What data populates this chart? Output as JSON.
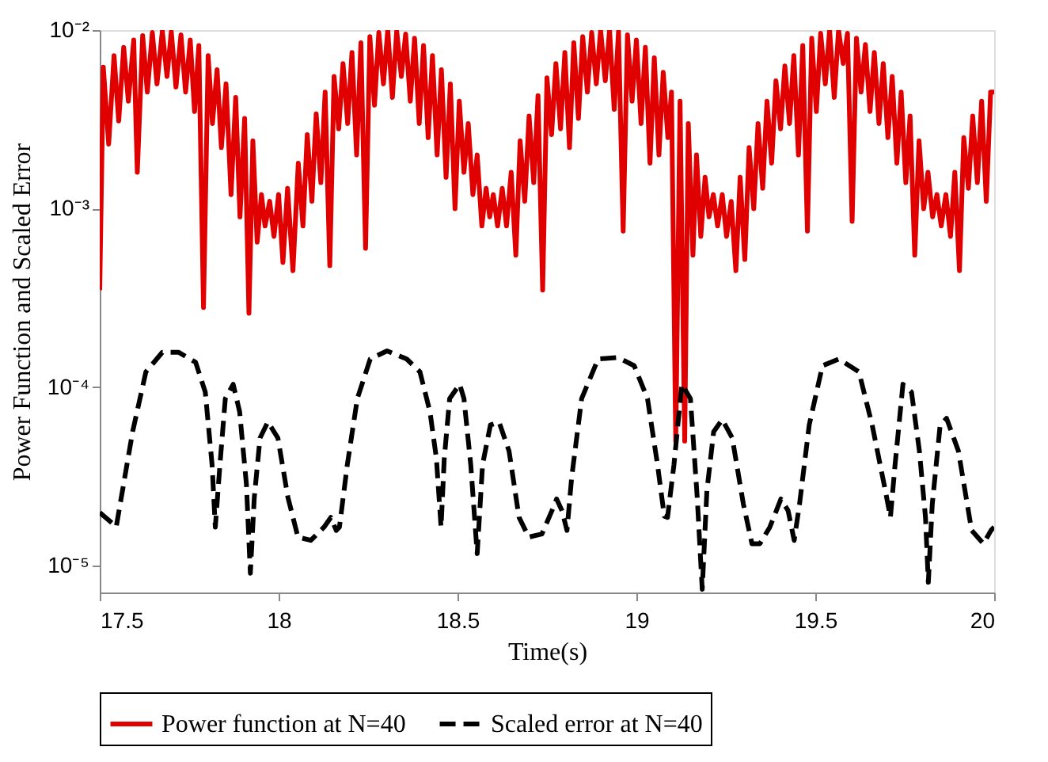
{
  "chart_data": {
    "type": "line",
    "xlabel": "Time(s)",
    "ylabel": "Power Function and Scaled Error",
    "log": "y",
    "grid": false,
    "legend": "bottom",
    "marker": "none",
    "xlim": [
      17.5,
      20
    ],
    "xticks": [
      17.5,
      18,
      18.5,
      19,
      19.5,
      20
    ],
    "ylim": [
      7.1e-06,
      0.01
    ],
    "yticks": [
      {
        "value": 1e-05,
        "label": "10⁻⁵"
      },
      {
        "value": 0.0001,
        "label": "10⁻⁴"
      },
      {
        "value": 0.001,
        "label": "10⁻³"
      },
      {
        "value": 0.01,
        "label": "10⁻²"
      }
    ],
    "series": [
      {
        "name": "Power function at N=40",
        "color": "#e00000",
        "line_style": "solid",
        "x": [
          17.5,
          17.51,
          17.525,
          17.54,
          17.553,
          17.567,
          17.58,
          17.595,
          17.605,
          17.62,
          17.633,
          17.647,
          17.66,
          17.675,
          17.688,
          17.7,
          17.713,
          17.727,
          17.74,
          17.753,
          17.765,
          17.777,
          17.79,
          17.803,
          17.815,
          17.828,
          17.84,
          17.853,
          17.867,
          17.88,
          17.892,
          17.905,
          17.917,
          17.928,
          17.94,
          17.952,
          17.962,
          17.975,
          17.987,
          18.0,
          18.012,
          18.025,
          18.04,
          18.055,
          18.068,
          18.08,
          18.093,
          18.105,
          18.118,
          18.13,
          18.143,
          18.155,
          18.168,
          18.18,
          18.193,
          18.205,
          18.218,
          18.23,
          18.243,
          18.255,
          18.268,
          18.28,
          18.293,
          18.305,
          18.318,
          18.33,
          18.343,
          18.355,
          18.368,
          18.38,
          18.393,
          18.405,
          18.418,
          18.43,
          18.443,
          18.455,
          18.468,
          18.48,
          18.493,
          18.505,
          18.518,
          18.53,
          18.543,
          18.555,
          18.568,
          18.58,
          18.59,
          18.6,
          18.612,
          18.625,
          18.637,
          18.65,
          18.663,
          18.675,
          18.688,
          18.7,
          18.713,
          18.725,
          18.738,
          18.75,
          18.763,
          18.775,
          18.788,
          18.8,
          18.813,
          18.825,
          18.838,
          18.85,
          18.863,
          18.875,
          18.888,
          18.9,
          18.913,
          18.925,
          18.938,
          18.95,
          18.963,
          18.975,
          18.988,
          19.0,
          19.013,
          19.025,
          19.038,
          19.05,
          19.063,
          19.075,
          19.088,
          19.098,
          19.11,
          19.122,
          19.135,
          19.145,
          19.158,
          19.168,
          19.18,
          19.192,
          19.203,
          19.215,
          19.227,
          19.24,
          19.252,
          19.265,
          19.278,
          19.29,
          19.303,
          19.315,
          19.328,
          19.34,
          19.353,
          19.365,
          19.378,
          19.39,
          19.403,
          19.415,
          19.428,
          19.44,
          19.453,
          19.465,
          19.478,
          19.49,
          19.503,
          19.515,
          19.528,
          19.54,
          19.553,
          19.565,
          19.578,
          19.59,
          19.603,
          19.615,
          19.628,
          19.64,
          19.653,
          19.665,
          19.678,
          19.69,
          19.703,
          19.715,
          19.728,
          19.74,
          19.753,
          19.765,
          19.778,
          19.79,
          19.803,
          19.815,
          19.828,
          19.84,
          19.852,
          19.865,
          19.878,
          19.89,
          19.903,
          19.915,
          19.928,
          19.94,
          19.953,
          19.965,
          19.978,
          19.99,
          20.0
        ],
        "values": [
          0.00035,
          0.0062,
          0.0023,
          0.0072,
          0.0031,
          0.008,
          0.004,
          0.0088,
          0.0016,
          0.0093,
          0.0045,
          0.0097,
          0.005,
          0.0099,
          0.0055,
          0.0098,
          0.0048,
          0.0094,
          0.0045,
          0.0088,
          0.0035,
          0.0082,
          0.00028,
          0.0072,
          0.003,
          0.006,
          0.0022,
          0.005,
          0.0012,
          0.0042,
          0.0009,
          0.0032,
          0.00026,
          0.0024,
          0.00065,
          0.0012,
          0.0008,
          0.0011,
          0.0007,
          0.0012,
          0.0005,
          0.0013,
          0.00045,
          0.0018,
          0.0008,
          0.0026,
          0.0011,
          0.0034,
          0.0014,
          0.0045,
          0.00048,
          0.0055,
          0.0028,
          0.0065,
          0.003,
          0.0075,
          0.002,
          0.0085,
          0.0006,
          0.0092,
          0.0038,
          0.0097,
          0.005,
          0.01,
          0.0042,
          0.0099,
          0.0055,
          0.0095,
          0.004,
          0.009,
          0.003,
          0.0082,
          0.0025,
          0.0072,
          0.002,
          0.006,
          0.0015,
          0.005,
          0.001,
          0.004,
          0.0016,
          0.003,
          0.0012,
          0.002,
          0.0008,
          0.0013,
          0.0009,
          0.0012,
          0.0008,
          0.0013,
          0.0008,
          0.0016,
          0.00055,
          0.0024,
          0.0011,
          0.0033,
          0.0014,
          0.0043,
          0.00035,
          0.0054,
          0.0026,
          0.0065,
          0.0028,
          0.0075,
          0.0022,
          0.0085,
          0.0032,
          0.0092,
          0.0045,
          0.0097,
          0.005,
          0.01,
          0.0052,
          0.01,
          0.0036,
          0.0098,
          0.00075,
          0.0094,
          0.004,
          0.0088,
          0.003,
          0.008,
          0.0018,
          0.007,
          0.002,
          0.0058,
          0.0025,
          0.0045,
          5e-05,
          0.004,
          5e-05,
          0.003,
          0.00055,
          0.002,
          0.0007,
          0.0015,
          0.0009,
          0.0012,
          0.0008,
          0.0012,
          0.0007,
          0.0011,
          0.00045,
          0.0015,
          0.00052,
          0.0022,
          0.001,
          0.003,
          0.0013,
          0.004,
          0.0018,
          0.0052,
          0.0028,
          0.0063,
          0.003,
          0.0072,
          0.002,
          0.0082,
          0.00075,
          0.009,
          0.0035,
          0.0096,
          0.005,
          0.01,
          0.0042,
          0.01,
          0.0065,
          0.0096,
          0.00085,
          0.009,
          0.0045,
          0.0083,
          0.0035,
          0.0075,
          0.003,
          0.0065,
          0.0025,
          0.0055,
          0.0018,
          0.0045,
          0.0014,
          0.0033,
          0.00055,
          0.0024,
          0.001,
          0.0016,
          0.0009,
          0.0012,
          0.0008,
          0.0012,
          0.0007,
          0.0016,
          0.00045,
          0.0025,
          0.0013,
          0.0033,
          0.0014,
          0.004,
          0.0011,
          0.0045,
          0.0045
        ]
      },
      {
        "name": "Scaled error at N=40",
        "color": "#000000",
        "line_style": "dashed",
        "x": [
          17.5,
          17.537,
          17.546,
          17.592,
          17.629,
          17.675,
          17.721,
          17.768,
          17.795,
          17.814,
          17.823,
          17.836,
          17.851,
          17.873,
          17.891,
          17.91,
          17.921,
          17.932,
          17.948,
          17.97,
          17.998,
          18.026,
          18.054,
          18.09,
          18.127,
          18.146,
          18.161,
          18.17,
          18.192,
          18.22,
          18.256,
          18.303,
          18.358,
          18.395,
          18.423,
          18.441,
          18.454,
          18.463,
          18.478,
          18.506,
          18.518,
          18.537,
          18.555,
          18.57,
          18.592,
          18.616,
          18.644,
          18.672,
          18.699,
          18.736,
          18.764,
          18.777,
          18.792,
          18.806,
          18.819,
          18.847,
          18.893,
          18.948,
          18.994,
          19.031,
          19.059,
          19.078,
          19.087,
          19.105,
          19.127,
          19.151,
          19.17,
          19.184,
          19.197,
          19.216,
          19.24,
          19.268,
          19.299,
          19.323,
          19.345,
          19.373,
          19.404,
          19.424,
          19.441,
          19.456,
          19.483,
          19.52,
          19.566,
          19.622,
          19.659,
          19.696,
          19.71,
          19.723,
          19.745,
          19.769,
          19.791,
          19.808,
          19.816,
          19.827,
          19.849,
          19.867,
          19.9,
          19.937,
          19.97,
          19.991,
          20.0
        ],
        "values": [
          1.99e-05,
          1.72e-05,
          1.65e-05,
          5.65e-05,
          0.000122,
          0.000157,
          0.000157,
          0.000138,
          9.4e-05,
          3.69e-05,
          1.65e-05,
          3.69e-05,
          8.65e-05,
          0.000104,
          7.3e-05,
          2.86e-05,
          9.1e-06,
          2.42e-05,
          5.2e-05,
          6.4e-05,
          5.2e-05,
          2.42e-05,
          1.45e-05,
          1.39e-05,
          1.65e-05,
          1.87e-05,
          1.58e-05,
          1.65e-05,
          3.69e-05,
          8.65e-05,
          0.000144,
          0.00016,
          0.000144,
          0.000122,
          7.3e-05,
          4e-05,
          1.65e-05,
          4e-05,
          8.65e-05,
          0.000104,
          8.65e-05,
          3.69e-05,
          1.17e-05,
          3.69e-05,
          6.15e-05,
          6.4e-05,
          4.4e-05,
          1.87e-05,
          1.45e-05,
          1.51e-05,
          2.04e-05,
          2.37e-05,
          2.04e-05,
          1.58e-05,
          3.12e-05,
          8.65e-05,
          0.000144,
          0.000147,
          0.000132,
          8.65e-05,
          3.69e-05,
          1.9e-05,
          1.87e-05,
          3.69e-05,
          0.000104,
          8.65e-05,
          2.42e-05,
          7.4e-06,
          2.63e-05,
          5.65e-05,
          6.6e-05,
          5.2e-05,
          2.22e-05,
          1.33e-05,
          1.33e-05,
          1.65e-05,
          2.37e-05,
          2.04e-05,
          1.39e-05,
          2.22e-05,
          6.15e-05,
          0.000132,
          0.000144,
          0.000122,
          6.15e-05,
          2.63e-05,
          1.87e-05,
          3.69e-05,
          0.000104,
          9.4e-05,
          4.4e-05,
          1.87e-05,
          8.1e-06,
          2.22e-05,
          6.15e-05,
          6.7e-05,
          4.4e-05,
          1.58e-05,
          1.33e-05,
          1.58e-05,
          1.65e-05
        ]
      }
    ]
  }
}
